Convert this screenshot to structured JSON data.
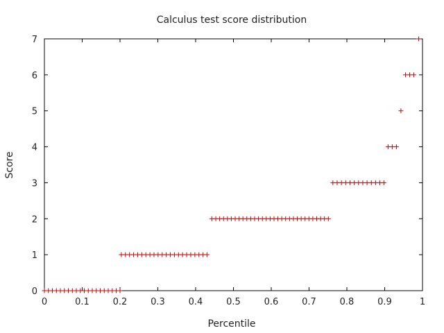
{
  "chart_data": {
    "type": "scatter",
    "title": "Calculus test score distribution",
    "xlabel": "Percentile",
    "ylabel": "Score",
    "xlim": [
      0,
      1
    ],
    "ylim": [
      0,
      7
    ],
    "x_ticks": [
      "0",
      "0.1",
      "0.2",
      "0.3",
      "0.4",
      "0.5",
      "0.6",
      "0.7",
      "0.8",
      "0.9",
      "1"
    ],
    "y_ticks": [
      "0",
      "1",
      "2",
      "3",
      "4",
      "5",
      "6",
      "7"
    ],
    "grid": false,
    "marker": "+",
    "marker_color": "#cc0000",
    "series": [
      {
        "x": [
          0.0,
          0.0106,
          0.0211,
          0.0317,
          0.0422,
          0.0528,
          0.0633,
          0.0739,
          0.0844,
          0.095,
          0.1055,
          0.1161,
          0.1266,
          0.1372,
          0.1477,
          0.1583,
          0.1688,
          0.1794,
          0.19,
          0.2,
          0.2035,
          0.2143,
          0.2251,
          0.2359,
          0.2467,
          0.2575,
          0.2683,
          0.2791,
          0.2899,
          0.3007,
          0.3115,
          0.3223,
          0.3331,
          0.3439,
          0.3547,
          0.3655,
          0.3763,
          0.3871,
          0.3979,
          0.4087,
          0.4195,
          0.43,
          0.443,
          0.4533,
          0.4635,
          0.4738,
          0.4841,
          0.4943,
          0.5046,
          0.5149,
          0.5251,
          0.5354,
          0.5457,
          0.5559,
          0.5662,
          0.5765,
          0.5867,
          0.597,
          0.6073,
          0.6175,
          0.6278,
          0.6381,
          0.6483,
          0.6586,
          0.6689,
          0.6791,
          0.6894,
          0.6997,
          0.7099,
          0.7202,
          0.7305,
          0.7407,
          0.751,
          0.763,
          0.7743,
          0.7856,
          0.7969,
          0.8082,
          0.8195,
          0.8308,
          0.8421,
          0.8534,
          0.8647,
          0.876,
          0.8873,
          0.898,
          0.909,
          0.92,
          0.931,
          0.943,
          0.955,
          0.966,
          0.977,
          0.99
        ],
        "y": [
          0,
          0,
          0,
          0,
          0,
          0,
          0,
          0,
          0,
          0,
          0,
          0,
          0,
          0,
          0,
          0,
          0,
          0,
          0,
          0,
          1,
          1,
          1,
          1,
          1,
          1,
          1,
          1,
          1,
          1,
          1,
          1,
          1,
          1,
          1,
          1,
          1,
          1,
          1,
          1,
          1,
          1,
          2,
          2,
          2,
          2,
          2,
          2,
          2,
          2,
          2,
          2,
          2,
          2,
          2,
          2,
          2,
          2,
          2,
          2,
          2,
          2,
          2,
          2,
          2,
          2,
          2,
          2,
          2,
          2,
          2,
          2,
          2,
          3,
          3,
          3,
          3,
          3,
          3,
          3,
          3,
          3,
          3,
          3,
          3,
          3,
          4,
          4,
          4,
          5,
          6,
          6,
          6,
          7
        ]
      }
    ]
  }
}
